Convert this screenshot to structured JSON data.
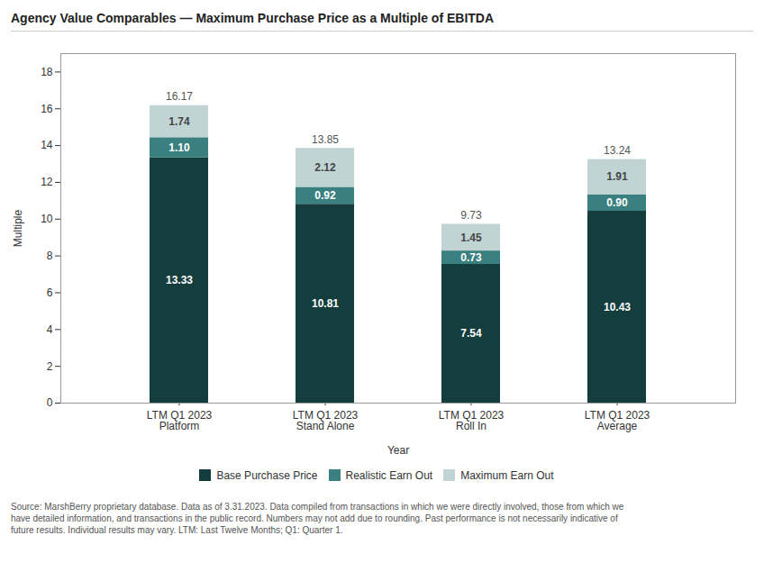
{
  "chart_data": {
    "type": "bar",
    "stacked": true,
    "data_labels": true,
    "grid": false,
    "legend": "bottom",
    "title": "Agency Value Comparables — Maximum Purchase Price as a Multiple of EBITDA",
    "caption": "Source: MarshBerry proprietary database. Data as of 3.31.2023. Data compiled from transactions in which we were directly involved, those from which we\nhave detailed information, and transactions in the public record. Numbers may not add due to rounding. Past performance is not necessarily indicative of\nfuture results. Individual results may vary. LTM: Last Twelve Months; Q1: Quarter 1.",
    "xlabel": "Year",
    "ylabel": "Multiple",
    "categories": [
      "LTM Q1 2023\nPlatform",
      "LTM Q1 2023\nStand Alone",
      "LTM Q1 2023\nRoll In",
      "LTM Q1 2023\nAverage"
    ],
    "series": [
      {
        "name": "Base Purchase Price",
        "color": "#143d3d",
        "values": [
          13.33,
          10.81,
          7.54,
          10.43
        ],
        "value_labels": [
          "13.33",
          "10.81",
          "7.54",
          "10.43"
        ]
      },
      {
        "name": "Realistic Earn Out",
        "color": "#3a8080",
        "values": [
          1.1,
          0.92,
          0.73,
          0.9
        ],
        "value_labels": [
          "1.10",
          "0.92",
          "0.73",
          "0.90"
        ]
      },
      {
        "name": "Maximum Earn Out",
        "color": "#c0d4d4",
        "values": [
          1.74,
          2.12,
          1.45,
          1.91
        ],
        "value_labels": [
          "1.74",
          "2.12",
          "1.45",
          "1.91"
        ]
      }
    ],
    "totals": [
      16.17,
      13.85,
      9.73,
      13.24
    ],
    "ylim": [
      0,
      19
    ],
    "yticks": [
      0,
      2,
      4,
      6,
      8,
      10,
      12,
      14,
      16,
      18
    ]
  }
}
